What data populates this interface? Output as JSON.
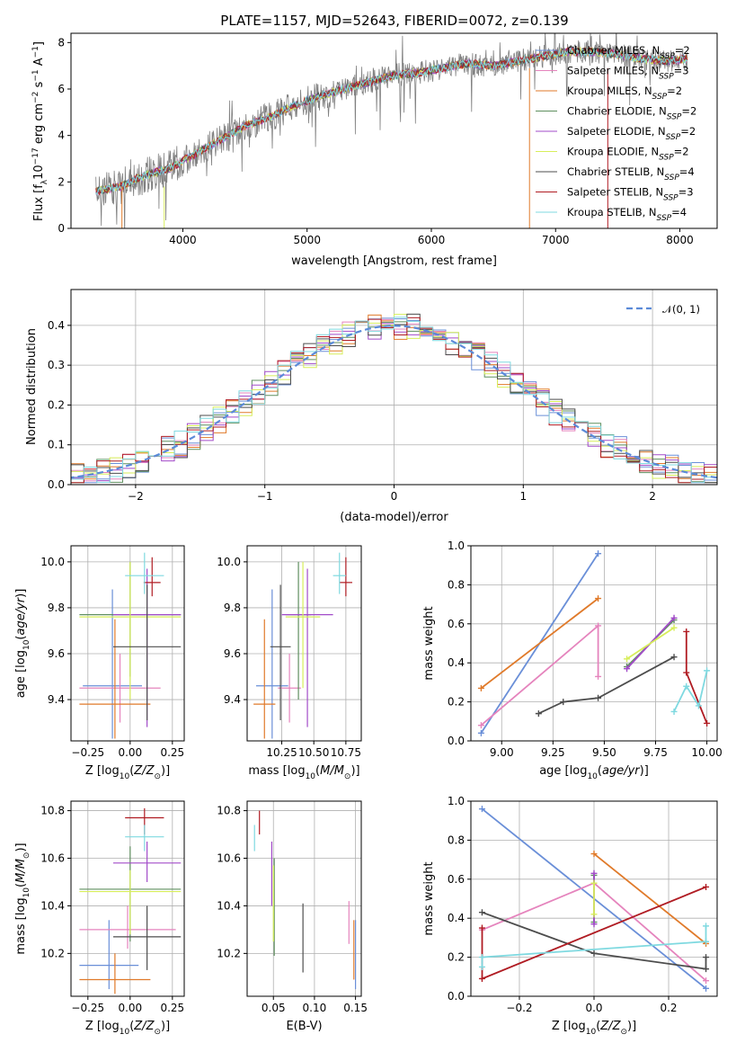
{
  "figure": {
    "title": "PLATE=1157, MJD=52643, FIBERID=0072, z=0.139"
  },
  "colors": {
    "Chabrier MILES": "#6a8fd8",
    "Salpeter MILES": "#e584bd",
    "Kroupa MILES": "#e07a2a",
    "Chabrier ELODIE": "#5f8f5f",
    "Salpeter ELODIE": "#a24bc9",
    "Kroupa ELODIE": "#d7ee5a",
    "Chabrier STELIB": "#4d4d4d",
    "Salpeter STELIB": "#b01c23",
    "Kroupa STELIB": "#7fd9e0"
  },
  "chart_data": [
    {
      "type": "line",
      "title": "PLATE=1157, MJD=52643, FIBERID=0072, z=0.139",
      "xlabel": "wavelength [Angstrom, rest frame]",
      "ylabel": "Flux [f_λ10^-17 erg cm^-2 s^-1 A^-1]",
      "xlim": [
        3100,
        8300
      ],
      "ylim": [
        0,
        8.4
      ],
      "xticks": [
        "4000",
        "5000",
        "6000",
        "7000",
        "8000"
      ],
      "yticks": [
        "0",
        "2",
        "4",
        "6",
        "8"
      ],
      "data_color": "#808080",
      "spectrum_anchor_points": {
        "x": [
          3300,
          3500,
          3700,
          3900,
          4100,
          4300,
          4500,
          4700,
          4900,
          5100,
          5300,
          5500,
          5700,
          5900,
          6100,
          6300,
          6500,
          6700,
          6900,
          7100,
          7300,
          7500,
          7700,
          7900,
          8050
        ],
        "y": [
          1.6,
          1.8,
          2.3,
          2.6,
          3.2,
          3.8,
          4.4,
          4.8,
          5.3,
          5.7,
          6.0,
          6.3,
          6.6,
          6.7,
          6.9,
          7.1,
          7.0,
          7.2,
          7.4,
          7.6,
          7.6,
          7.5,
          7.3,
          7.2,
          7.3
        ]
      },
      "legend": [
        "Chabrier MILES, N_SSP=2",
        "Salpeter MILES, N_SSP=3",
        "Kroupa MILES, N_SSP=2",
        "Chabrier ELODIE, N_SSP=2",
        "Salpeter ELODIE, N_SSP=2",
        "Kroupa ELODIE, N_SSP=2",
        "Chabrier STELIB, N_SSP=4",
        "Salpeter STELIB, N_SSP=3",
        "Kroupa STELIB, N_SSP=4"
      ],
      "legend_placement": "upper-right"
    },
    {
      "type": "step",
      "xlabel": "(data-model)/error",
      "ylabel": "Normed distribution",
      "xlim": [
        -2.5,
        2.5
      ],
      "ylim": [
        0,
        0.49
      ],
      "xticks": [
        "−2",
        "−1",
        "0",
        "1",
        "2"
      ],
      "yticks": [
        "0.0",
        "0.1",
        "0.2",
        "0.3",
        "0.4"
      ],
      "grid": true,
      "reference_curve": {
        "name": "𝒩(0, 1)",
        "style": "dashed"
      }
    },
    {
      "type": "errorbar",
      "xlabel": "Z [log10(Z/Z⊙)]",
      "ylabel": "age [log10(age/yr)]",
      "xlim": [
        -0.35,
        0.32
      ],
      "ylim": [
        9.22,
        10.07
      ],
      "xticks": [
        "−0.25",
        "0.00",
        "0.25"
      ],
      "yticks": [
        "9.4",
        "9.6",
        "9.8",
        "10.0"
      ],
      "points": [
        {
          "model": "Chabrier MILES",
          "x": [
            -0.28,
            0.07
          ],
          "y": 9.46,
          "yerr": [
            9.23,
            9.88
          ]
        },
        {
          "model": "Salpeter MILES",
          "x": [
            -0.3,
            0.18
          ],
          "y": 9.45,
          "yerr": [
            9.3,
            9.6
          ]
        },
        {
          "model": "Kroupa MILES",
          "x": [
            -0.3,
            0.12
          ],
          "y": 9.38,
          "yerr": [
            9.23,
            9.75
          ]
        },
        {
          "model": "Chabrier ELODIE",
          "x": [
            -0.3,
            0.3
          ],
          "y": 9.77,
          "yerr": [
            9.5,
            10.0
          ]
        },
        {
          "model": "Salpeter ELODIE",
          "x": [
            -0.1,
            0.3
          ],
          "y": 9.77,
          "yerr": [
            9.28,
            9.97
          ]
        },
        {
          "model": "Kroupa ELODIE",
          "x": [
            -0.3,
            0.3
          ],
          "y": 9.76,
          "yerr": [
            9.4,
            10.0
          ]
        },
        {
          "model": "Chabrier STELIB",
          "x": [
            -0.1,
            0.3
          ],
          "y": 9.63,
          "yerr": [
            9.31,
            9.9
          ]
        },
        {
          "model": "Salpeter STELIB",
          "x": [
            0.08,
            0.18
          ],
          "y": 9.91,
          "yerr": [
            9.85,
            10.02
          ]
        },
        {
          "model": "Kroupa STELIB",
          "x": [
            -0.03,
            0.2
          ],
          "y": 9.94,
          "yerr": [
            9.86,
            10.04
          ]
        }
      ]
    },
    {
      "type": "errorbar",
      "xlabel": "mass [log10(M/M⊙)]",
      "xlim": [
        9.98,
        10.87
      ],
      "ylim": [
        9.22,
        10.07
      ],
      "xticks": [
        "10.25",
        "10.50",
        "10.75"
      ],
      "yticks": [
        "9.4",
        "9.6",
        "9.8",
        "10.0"
      ],
      "points": [
        {
          "model": "Chabrier MILES",
          "x": [
            10.05,
            10.3
          ],
          "y": 9.46,
          "yerr": [
            9.23,
            9.88
          ]
        },
        {
          "model": "Salpeter MILES",
          "x": [
            10.22,
            10.4
          ],
          "y": 9.45,
          "yerr": [
            9.3,
            9.6
          ]
        },
        {
          "model": "Kroupa MILES",
          "x": [
            10.03,
            10.2
          ],
          "y": 9.38,
          "yerr": [
            9.23,
            9.75
          ]
        },
        {
          "model": "Chabrier ELODIE",
          "x": [
            10.28,
            10.48
          ],
          "y": 9.77,
          "yerr": [
            9.4,
            10.0
          ]
        },
        {
          "model": "Salpeter ELODIE",
          "x": [
            10.25,
            10.65
          ],
          "y": 9.77,
          "yerr": [
            9.28,
            9.97
          ]
        },
        {
          "model": "Kroupa ELODIE",
          "x": [
            10.28,
            10.55
          ],
          "y": 9.76,
          "yerr": [
            9.45,
            10.0
          ]
        },
        {
          "model": "Chabrier STELIB",
          "x": [
            10.16,
            10.32
          ],
          "y": 9.63,
          "yerr": [
            9.31,
            9.9
          ]
        },
        {
          "model": "Salpeter STELIB",
          "x": [
            10.7,
            10.8
          ],
          "y": 9.91,
          "yerr": [
            9.85,
            10.02
          ]
        },
        {
          "model": "Kroupa STELIB",
          "x": [
            10.65,
            10.75
          ],
          "y": 9.94,
          "yerr": [
            9.86,
            10.04
          ]
        }
      ]
    },
    {
      "type": "line",
      "xlabel": "age [log10(age/yr)]",
      "ylabel": "mass weight",
      "xlim": [
        8.85,
        10.05
      ],
      "ylim": [
        0,
        1.0
      ],
      "xticks": [
        "9.00",
        "9.25",
        "9.50",
        "9.75",
        "10.00"
      ],
      "yticks": [
        "0.0",
        "0.2",
        "0.4",
        "0.6",
        "0.8",
        "1.0"
      ],
      "grid": true,
      "series": [
        {
          "model": "Chabrier MILES",
          "x": [
            8.9,
            9.47
          ],
          "y": [
            0.04,
            0.96
          ]
        },
        {
          "model": "Salpeter MILES",
          "x": [
            8.9,
            9.47,
            9.47
          ],
          "y": [
            0.08,
            0.59,
            0.33
          ]
        },
        {
          "model": "Kroupa MILES",
          "x": [
            8.9,
            9.47
          ],
          "y": [
            0.27,
            0.73
          ]
        },
        {
          "model": "Chabrier ELODIE",
          "x": [
            9.61,
            9.84
          ],
          "y": [
            0.38,
            0.62
          ]
        },
        {
          "model": "Salpeter ELODIE",
          "x": [
            9.61,
            9.84
          ],
          "y": [
            0.37,
            0.63
          ]
        },
        {
          "model": "Kroupa ELODIE",
          "x": [
            9.61,
            9.84
          ],
          "y": [
            0.42,
            0.58
          ]
        },
        {
          "model": "Chabrier STELIB",
          "x": [
            9.18,
            9.3,
            9.47,
            9.84
          ],
          "y": [
            0.14,
            0.2,
            0.22,
            0.43
          ]
        },
        {
          "model": "Salpeter STELIB",
          "x": [
            9.9,
            9.9,
            10.0
          ],
          "y": [
            0.56,
            0.35,
            0.09
          ]
        },
        {
          "model": "Kroupa STELIB",
          "x": [
            9.84,
            9.9,
            9.96,
            10.0
          ],
          "y": [
            0.15,
            0.28,
            0.18,
            0.36
          ]
        }
      ]
    },
    {
      "type": "errorbar",
      "xlabel": "Z [log10(Z/Z⊙)]",
      "ylabel": "mass [log10(M/M⊙)]",
      "xlim": [
        -0.35,
        0.32
      ],
      "ylim": [
        10.02,
        10.84
      ],
      "xticks": [
        "−0.25",
        "0.00",
        "0.25"
      ],
      "yticks": [
        "10.2",
        "10.4",
        "10.6",
        "10.8"
      ],
      "points": [
        {
          "model": "Chabrier MILES",
          "x": [
            -0.3,
            0.05
          ],
          "y": 10.15,
          "yerr": [
            10.05,
            10.34
          ]
        },
        {
          "model": "Salpeter MILES",
          "x": [
            -0.3,
            0.27
          ],
          "y": 10.3,
          "yerr": [
            10.22,
            10.4
          ]
        },
        {
          "model": "Kroupa MILES",
          "x": [
            -0.3,
            0.12
          ],
          "y": 10.09,
          "yerr": [
            10.03,
            10.2
          ]
        },
        {
          "model": "Chabrier ELODIE",
          "x": [
            -0.3,
            0.3
          ],
          "y": 10.47,
          "yerr": [
            10.25,
            10.65
          ]
        },
        {
          "model": "Salpeter ELODIE",
          "x": [
            -0.1,
            0.3
          ],
          "y": 10.58,
          "yerr": [
            10.5,
            10.67
          ]
        },
        {
          "model": "Kroupa ELODIE",
          "x": [
            -0.3,
            0.3
          ],
          "y": 10.46,
          "yerr": [
            10.28,
            10.55
          ]
        },
        {
          "model": "Chabrier STELIB",
          "x": [
            -0.1,
            0.3
          ],
          "y": 10.27,
          "yerr": [
            10.13,
            10.4
          ]
        },
        {
          "model": "Salpeter STELIB",
          "x": [
            -0.03,
            0.2
          ],
          "y": 10.77,
          "yerr": [
            10.7,
            10.81
          ]
        },
        {
          "model": "Kroupa STELIB",
          "x": [
            -0.03,
            0.2
          ],
          "y": 10.69,
          "yerr": [
            10.63,
            10.74
          ]
        }
      ]
    },
    {
      "type": "errorbar",
      "xlabel": "E(B-V)",
      "xlim": [
        0.018,
        0.157
      ],
      "ylim": [
        10.02,
        10.84
      ],
      "xticks": [
        "0.05",
        "0.10",
        "0.15"
      ],
      "yticks": [
        "10.2",
        "10.4",
        "10.6",
        "10.8"
      ],
      "points": [
        {
          "model": "Chabrier MILES",
          "x": 0.15,
          "yerr": [
            10.05,
            10.34
          ]
        },
        {
          "model": "Salpeter MILES",
          "x": 0.142,
          "yerr": [
            10.24,
            10.42
          ]
        },
        {
          "model": "Kroupa MILES",
          "x": 0.148,
          "yerr": [
            10.09,
            10.34
          ]
        },
        {
          "model": "Chabrier ELODIE",
          "x": 0.051,
          "yerr": [
            10.19,
            10.6
          ]
        },
        {
          "model": "Salpeter ELODIE",
          "x": 0.048,
          "yerr": [
            10.4,
            10.67
          ]
        },
        {
          "model": "Kroupa ELODIE",
          "x": 0.05,
          "yerr": [
            10.25,
            10.57
          ]
        },
        {
          "model": "Chabrier STELIB",
          "x": 0.086,
          "yerr": [
            10.12,
            10.41
          ]
        },
        {
          "model": "Salpeter STELIB",
          "x": 0.033,
          "yerr": [
            10.7,
            10.8
          ]
        },
        {
          "model": "Kroupa STELIB",
          "x": 0.027,
          "yerr": [
            10.63,
            10.74
          ]
        }
      ]
    },
    {
      "type": "line",
      "xlabel": "Z [log10(Z/Z⊙)]",
      "ylabel": "mass weight",
      "xlim": [
        -0.33,
        0.33
      ],
      "ylim": [
        0,
        1.0
      ],
      "xticks": [
        "−0.2",
        "0.0",
        "0.2"
      ],
      "yticks": [
        "0.0",
        "0.2",
        "0.4",
        "0.6",
        "0.8",
        "1.0"
      ],
      "grid": true,
      "series": [
        {
          "model": "Chabrier MILES",
          "x": [
            -0.3,
            0.3
          ],
          "y": [
            0.96,
            0.04
          ]
        },
        {
          "model": "Salpeter MILES",
          "x": [
            -0.3,
            0.0,
            0.3
          ],
          "y": [
            0.34,
            0.58,
            0.08
          ]
        },
        {
          "model": "Kroupa MILES",
          "x": [
            0.0,
            0.3
          ],
          "y": [
            0.73,
            0.27
          ]
        },
        {
          "model": "Chabrier ELODIE",
          "x": [
            0.0,
            0.0
          ],
          "y": [
            0.38,
            0.62
          ]
        },
        {
          "model": "Salpeter ELODIE",
          "x": [
            0.0,
            0.0
          ],
          "y": [
            0.37,
            0.63
          ]
        },
        {
          "model": "Kroupa ELODIE",
          "x": [
            0.0,
            0.0
          ],
          "y": [
            0.42,
            0.58
          ]
        },
        {
          "model": "Chabrier STELIB",
          "x": [
            -0.3,
            0.0,
            0.3,
            0.3
          ],
          "y": [
            0.43,
            0.22,
            0.14,
            0.2
          ]
        },
        {
          "model": "Salpeter STELIB",
          "x": [
            -0.3,
            -0.3,
            0.3
          ],
          "y": [
            0.35,
            0.09,
            0.56
          ]
        },
        {
          "model": "Kroupa STELIB",
          "x": [
            -0.3,
            -0.3,
            0.3,
            0.3
          ],
          "y": [
            0.15,
            0.2,
            0.28,
            0.36
          ]
        }
      ]
    }
  ]
}
